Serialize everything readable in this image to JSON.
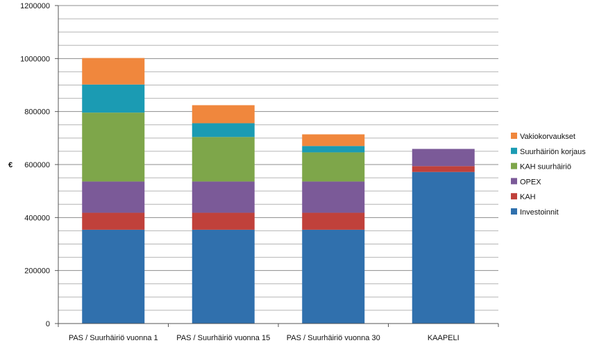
{
  "chart_data": {
    "type": "bar",
    "stacked": true,
    "ylabel": "€",
    "xlabel": "",
    "ylim": [
      0,
      1200000
    ],
    "yticks": [
      0,
      200000,
      400000,
      600000,
      800000,
      1000000,
      1200000
    ],
    "grid": true,
    "legend_position": "right",
    "categories": [
      "PAS / Suurhäiriö vuonna 1",
      "PAS / Suurhäiriö vuonna 15",
      "PAS / Suurhäiriö vuonna 30",
      "KAAPELI"
    ],
    "series": [
      {
        "name": "Investoinnit",
        "color": "#3070ad",
        "values": [
          354000,
          354000,
          354000,
          572000
        ]
      },
      {
        "name": "KAH",
        "color": "#c0413b",
        "values": [
          64000,
          64000,
          64000,
          22000
        ]
      },
      {
        "name": "OPEX",
        "color": "#7b5a98",
        "values": [
          118000,
          118000,
          118000,
          65000
        ]
      },
      {
        "name": "KAH suurhäiriö",
        "color": "#7ea64a",
        "values": [
          260000,
          168000,
          110000,
          0
        ]
      },
      {
        "name": "Suurhäiriön korjaus",
        "color": "#1b9bb3",
        "values": [
          106000,
          52000,
          24000,
          0
        ]
      },
      {
        "name": "Vakiokorvaukset",
        "color": "#f0873d",
        "values": [
          100000,
          68000,
          44000,
          0
        ]
      }
    ]
  }
}
